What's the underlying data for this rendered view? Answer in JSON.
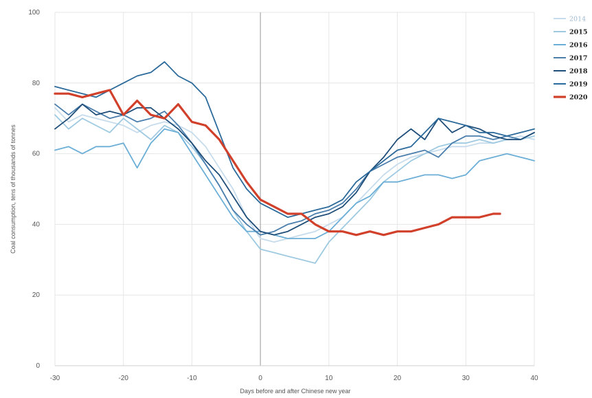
{
  "chart_data": {
    "type": "line",
    "xlabel": "Days before and after Chinese new year",
    "ylabel": "Coal consumption, tens of thousands of tonnes",
    "xlim": [
      -30,
      40
    ],
    "ylim": [
      0,
      100
    ],
    "xticks": [
      -30,
      -20,
      -10,
      0,
      10,
      20,
      30,
      40
    ],
    "yticks": [
      0,
      20,
      40,
      60,
      80,
      100
    ],
    "grid": true,
    "legend_position": "top-right",
    "vline_at_x": 0,
    "series": [
      {
        "name": "2014",
        "color": "#c6dcec",
        "x": [
          -30,
          -28,
          -26,
          -24,
          -22,
          -20,
          -18,
          -16,
          -14,
          -12,
          -10,
          -8,
          -6,
          -4,
          -2,
          0,
          2,
          4,
          6,
          8,
          10,
          12,
          14,
          16,
          18,
          20,
          22,
          24,
          26,
          28,
          30,
          32,
          34,
          36,
          38,
          40
        ],
        "y": [
          73,
          69,
          71,
          70,
          69,
          68,
          66,
          68,
          69,
          68,
          66,
          62,
          56,
          50,
          42,
          36,
          35,
          36,
          37,
          38,
          40,
          42,
          46,
          50,
          54,
          57,
          59,
          60,
          61,
          62,
          62,
          63,
          63,
          64,
          65,
          64
        ]
      },
      {
        "name": "2015",
        "color": "#9ecae1",
        "x": [
          -30,
          -28,
          -26,
          -24,
          -22,
          -20,
          -18,
          -16,
          -14,
          -12,
          -10,
          -8,
          -6,
          -4,
          -2,
          0,
          2,
          4,
          6,
          8,
          10,
          12,
          14,
          16,
          18,
          20,
          22,
          24,
          26,
          28,
          30,
          32,
          34,
          36,
          38,
          40
        ],
        "y": [
          71,
          67,
          70,
          68,
          66,
          70,
          67,
          64,
          68,
          66,
          62,
          57,
          51,
          44,
          38,
          33,
          32,
          31,
          30,
          29,
          35,
          39,
          43,
          47,
          52,
          55,
          58,
          60,
          62,
          63,
          63,
          64,
          63,
          64,
          64,
          65
        ]
      },
      {
        "name": "2016",
        "color": "#6baed6",
        "x": [
          -30,
          -28,
          -26,
          -24,
          -22,
          -20,
          -18,
          -16,
          -14,
          -12,
          -10,
          -8,
          -6,
          -4,
          -2,
          0,
          2,
          4,
          6,
          8,
          10,
          12,
          14,
          16,
          18,
          20,
          22,
          24,
          26,
          28,
          30,
          32,
          34,
          36,
          38,
          40
        ],
        "y": [
          61,
          62,
          60,
          62,
          62,
          63,
          56,
          63,
          67,
          66,
          60,
          54,
          48,
          42,
          38,
          38,
          37,
          36,
          36,
          36,
          38,
          42,
          46,
          48,
          52,
          52,
          53,
          54,
          54,
          53,
          54,
          58,
          59,
          60,
          59,
          58
        ]
      },
      {
        "name": "2017",
        "color": "#4a7ead",
        "x": [
          -30,
          -28,
          -26,
          -24,
          -22,
          -20,
          -18,
          -16,
          -14,
          -12,
          -10,
          -8,
          -6,
          -4,
          -2,
          0,
          2,
          4,
          6,
          8,
          10,
          12,
          14,
          16,
          18,
          20,
          22,
          24,
          26,
          28,
          30,
          32,
          34,
          36,
          38,
          40
        ],
        "y": [
          74,
          71,
          74,
          72,
          70,
          71,
          69,
          70,
          72,
          68,
          63,
          57,
          51,
          44,
          40,
          37,
          38,
          40,
          41,
          43,
          44,
          46,
          50,
          55,
          57,
          59,
          60,
          61,
          59,
          63,
          65,
          65,
          64,
          65,
          64,
          66
        ]
      },
      {
        "name": "2018",
        "color": "#1f4e79",
        "x": [
          -30,
          -28,
          -26,
          -24,
          -22,
          -20,
          -18,
          -16,
          -14,
          -12,
          -10,
          -8,
          -6,
          -4,
          -2,
          0,
          2,
          4,
          6,
          8,
          10,
          12,
          14,
          16,
          18,
          20,
          22,
          24,
          26,
          28,
          30,
          32,
          34,
          36,
          38,
          40
        ],
        "y": [
          67,
          70,
          74,
          71,
          72,
          71,
          73,
          73,
          70,
          67,
          63,
          58,
          54,
          48,
          42,
          38,
          37,
          38,
          40,
          42,
          43,
          45,
          49,
          55,
          59,
          64,
          67,
          64,
          70,
          66,
          68,
          67,
          65,
          64,
          64,
          66
        ]
      },
      {
        "name": "2019",
        "color": "#2b6a9a",
        "x": [
          -30,
          -28,
          -26,
          -24,
          -22,
          -20,
          -18,
          -16,
          -14,
          -12,
          -10,
          -8,
          -6,
          -4,
          -2,
          0,
          2,
          4,
          6,
          8,
          10,
          12,
          14,
          16,
          18,
          20,
          22,
          24,
          26,
          28,
          30,
          32,
          34,
          36,
          38,
          40
        ],
        "y": [
          79,
          78,
          77,
          76,
          78,
          80,
          82,
          83,
          86,
          82,
          80,
          76,
          66,
          56,
          50,
          46,
          44,
          42,
          43,
          44,
          45,
          47,
          52,
          55,
          58,
          61,
          62,
          66,
          70,
          69,
          68,
          66,
          66,
          65,
          66,
          67
        ]
      },
      {
        "name": "2020",
        "color": "#d1402a",
        "x": [
          -30,
          -28,
          -26,
          -24,
          -22,
          -20,
          -18,
          -16,
          -14,
          -12,
          -10,
          -8,
          -6,
          -4,
          -2,
          0,
          2,
          4,
          6,
          8,
          10,
          12,
          14,
          16,
          18,
          20,
          22,
          24,
          26,
          28,
          30,
          32,
          34,
          35
        ],
        "y": [
          77,
          77,
          76,
          77,
          78,
          71,
          75,
          71,
          70,
          74,
          69,
          68,
          64,
          58,
          52,
          47,
          45,
          43,
          43,
          40,
          38,
          38,
          37,
          38,
          37,
          38,
          38,
          39,
          40,
          42,
          42,
          42,
          43,
          43
        ]
      }
    ]
  }
}
